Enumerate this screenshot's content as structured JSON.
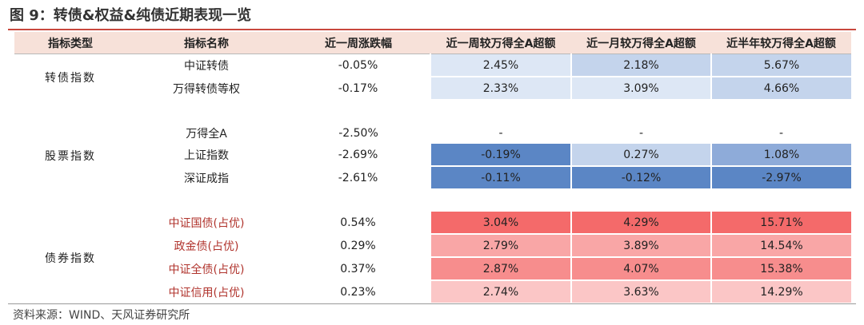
{
  "title": "图 9：转债&权益&纯债近期表现一览",
  "source": "资料来源：WIND、天风证券研究所",
  "headers": [
    "指标类型",
    "指标名称",
    "近一周涨跌幅",
    "近一周较万得全A超额",
    "近一月较万得全A超额",
    "近半年较万得全A超额"
  ],
  "groups": {
    "convertible": "转债指数",
    "equity": "股票指数",
    "bond": "债券指数"
  },
  "rows": [
    {
      "name": "中证转债",
      "week": "-0.05%",
      "w_ex": "2.45%",
      "m_ex": "2.18%",
      "h_ex": "5.67%"
    },
    {
      "name": "万得转债等权",
      "week": "-0.17%",
      "w_ex": "2.33%",
      "m_ex": "3.09%",
      "h_ex": "4.66%"
    },
    {
      "name": "万得全A",
      "week": "-2.50%",
      "w_ex": "-",
      "m_ex": "-",
      "h_ex": "-"
    },
    {
      "name": "上证指数",
      "week": "-2.69%",
      "w_ex": "-0.19%",
      "m_ex": "0.27%",
      "h_ex": "1.08%"
    },
    {
      "name": "深证成指",
      "week": "-2.61%",
      "w_ex": "-0.11%",
      "m_ex": "-0.12%",
      "h_ex": "-2.97%"
    },
    {
      "name": "中证国债(占优)",
      "week": "0.54%",
      "w_ex": "3.04%",
      "m_ex": "4.29%",
      "h_ex": "15.71%"
    },
    {
      "name": "政金债(占优)",
      "week": "0.29%",
      "w_ex": "2.79%",
      "m_ex": "3.89%",
      "h_ex": "14.54%"
    },
    {
      "name": "中证全债(占优)",
      "week": "0.37%",
      "w_ex": "2.87%",
      "m_ex": "4.07%",
      "h_ex": "15.38%"
    },
    {
      "name": "中证信用(占优)",
      "week": "0.23%",
      "w_ex": "2.74%",
      "m_ex": "3.63%",
      "h_ex": "14.29%"
    }
  ],
  "colors": {
    "title_rule": "#c8473d",
    "header_bg": "#f7e1d9",
    "bond_name_text": "#b0332c",
    "blue_light": "#dde7f5",
    "blue_mid_light": "#c4d4ec",
    "blue_mid": "#8eabd9",
    "blue_dark": "#5b86c5",
    "red_dark": "#f46a6a",
    "red_mid": "#f78d8d",
    "red_light": "#f9a6a6",
    "red_pale": "#fbc6c6"
  }
}
